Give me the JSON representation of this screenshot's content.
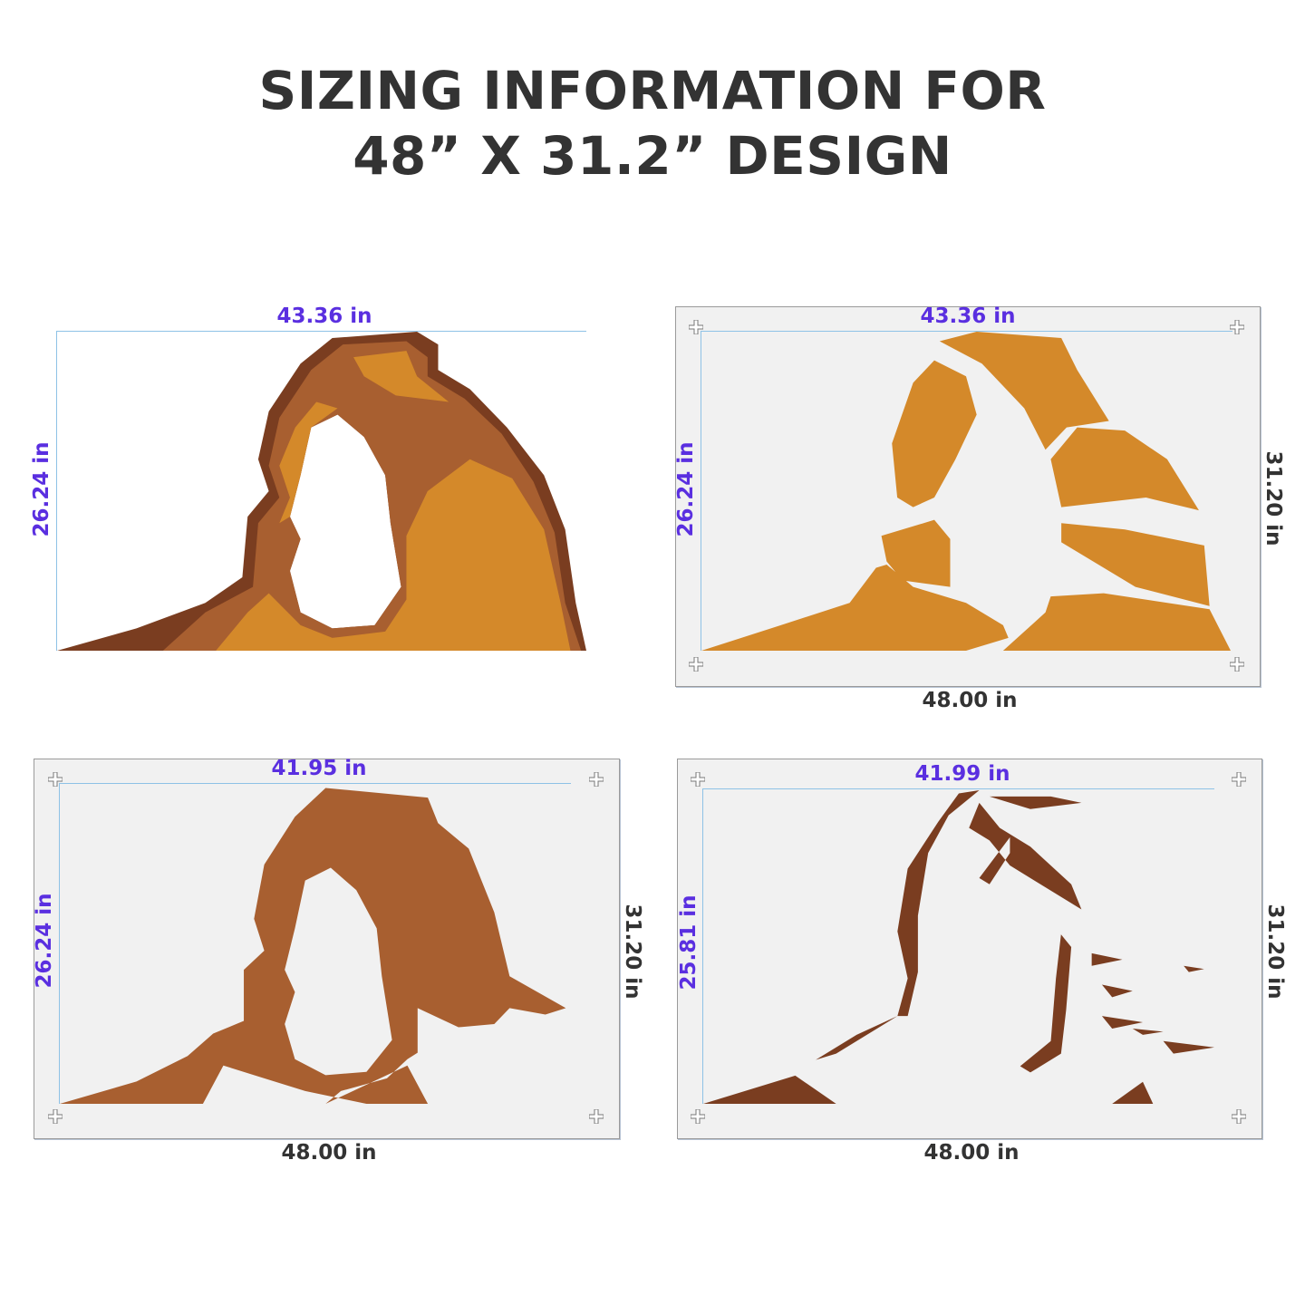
{
  "title": {
    "line1": "SIZING INFORMATION FOR",
    "line2": "48” X 31.2” DESIGN"
  },
  "colors": {
    "accent_label": "#5a2fe0",
    "orange": "#d4892a",
    "brown": "#a85f30",
    "dark_brown": "#7a3d20",
    "panel_bg": "#f1f1f1"
  },
  "panels": [
    {
      "width_label": "43.36  in",
      "height_label": "26.24  in"
    },
    {
      "width_label": "43.36  in",
      "height_label": "26.24  in",
      "sheet_height": "31.20  in",
      "sheet_width": "48.00  in"
    },
    {
      "width_label": "41.95  in",
      "height_label": "26.24  in",
      "sheet_height": "31.20  in",
      "sheet_width": "48.00  in"
    },
    {
      "width_label": "41.99  in",
      "height_label": "25.81  in",
      "sheet_height": "31.20  in",
      "sheet_width": "48.00  in"
    }
  ]
}
